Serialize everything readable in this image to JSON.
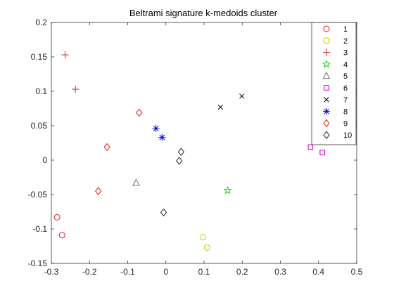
{
  "chart_data": {
    "type": "scatter",
    "title": "Beltrami signature k-medoids cluster",
    "xlabel": "",
    "ylabel": "",
    "xlim": [
      -0.3,
      0.5
    ],
    "ylim": [
      -0.15,
      0.2
    ],
    "xticks": [
      -0.3,
      -0.2,
      -0.1,
      0,
      0.1,
      0.2,
      0.3,
      0.4,
      0.5
    ],
    "xtick_labels": [
      "-0.3",
      "-0.2",
      "-0.1",
      "0",
      "0.1",
      "0.2",
      "0.3",
      "0.4",
      "0.5"
    ],
    "yticks": [
      -0.15,
      -0.1,
      -0.05,
      0,
      0.05,
      0.1,
      0.15,
      0.2
    ],
    "ytick_labels": [
      "-0.15",
      "-0.1",
      "-0.05",
      "0",
      "0.05",
      "0.1",
      "0.15",
      "0.2"
    ],
    "grid": false,
    "legend_position": "top-right",
    "series": [
      {
        "name": "1",
        "marker": "circle",
        "color": "#e41a1c",
        "points": [
          [
            -0.285,
            -0.083
          ],
          [
            -0.272,
            -0.109
          ]
        ]
      },
      {
        "name": "2",
        "marker": "circle",
        "color": "#c8c800",
        "points": [
          [
            0.097,
            -0.112
          ],
          [
            0.108,
            -0.127
          ]
        ]
      },
      {
        "name": "3",
        "marker": "plus",
        "color": "#e41a1c",
        "points": [
          [
            -0.264,
            0.153
          ],
          [
            -0.237,
            0.103
          ]
        ]
      },
      {
        "name": "4",
        "marker": "star",
        "color": "#1ec81e",
        "points": [
          [
            0.162,
            -0.044
          ]
        ]
      },
      {
        "name": "5",
        "marker": "triangle",
        "color": "#707070",
        "points": [
          [
            -0.078,
            -0.033
          ]
        ]
      },
      {
        "name": "6",
        "marker": "square",
        "color": "#cc00cc",
        "points": [
          [
            0.379,
            0.019
          ],
          [
            0.41,
            0.011
          ]
        ]
      },
      {
        "name": "7",
        "marker": "x",
        "color": "#000000",
        "points": [
          [
            0.143,
            0.077
          ],
          [
            0.199,
            0.093
          ]
        ]
      },
      {
        "name": "8",
        "marker": "asterisk",
        "color": "#0000e6",
        "points": [
          [
            -0.026,
            0.046
          ],
          [
            -0.01,
            0.033
          ]
        ]
      },
      {
        "name": "9",
        "marker": "diamond",
        "color": "#e41a1c",
        "points": [
          [
            -0.154,
            0.019
          ],
          [
            -0.177,
            -0.045
          ],
          [
            -0.07,
            0.069
          ]
        ]
      },
      {
        "name": "10",
        "marker": "diamond",
        "color": "#262626",
        "points": [
          [
            0.04,
            0.012
          ],
          [
            0.035,
            -0.001
          ],
          [
            -0.006,
            -0.076
          ]
        ]
      }
    ]
  }
}
